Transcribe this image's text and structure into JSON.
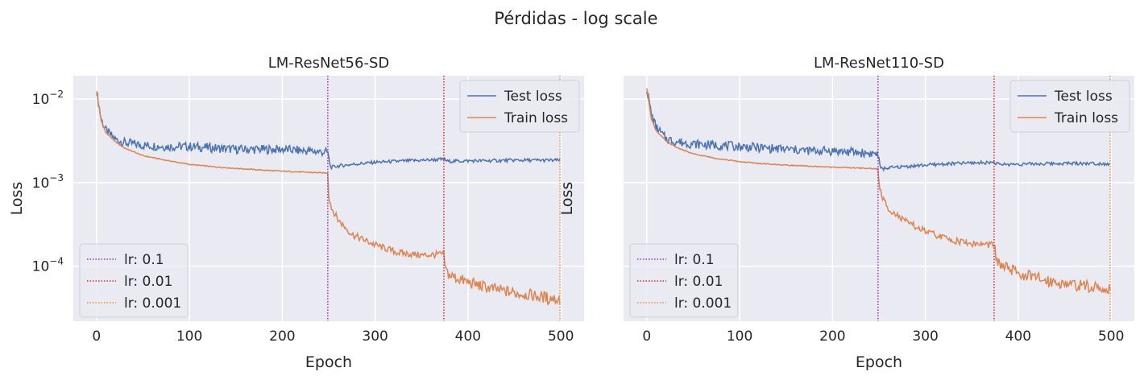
{
  "figure": {
    "suptitle": "Pérdidas - log scale"
  },
  "colors": {
    "test": "#4c72b0",
    "train": "#dd8452",
    "lr_0.1": "#9b30c0",
    "lr_0.01": "#e0282e",
    "lr_0.001": "#f0902a",
    "background": "#eaeaf2",
    "grid": "#ffffff"
  },
  "chart_data": [
    {
      "type": "line",
      "title": "LM-ResNet56-SD",
      "xlabel": "Epoch",
      "ylabel": "Loss",
      "yscale": "log",
      "xlim": [
        -25,
        525
      ],
      "ylim": [
        2.2e-05,
        0.019
      ],
      "xticks": [
        0,
        100,
        200,
        300,
        400,
        500
      ],
      "yticks": [
        0.0001,
        0.001,
        0.01
      ],
      "ytick_labels": [
        "10^-4",
        "10^-3",
        "10^-2"
      ],
      "grid": true,
      "series": [
        {
          "name": "Test loss",
          "key": "test",
          "x": [
            0,
            5,
            10,
            20,
            30,
            50,
            75,
            100,
            125,
            150,
            175,
            200,
            225,
            249,
            252,
            260,
            275,
            300,
            325,
            350,
            374,
            378,
            400,
            425,
            450,
            475,
            499
          ],
          "y": [
            0.0125,
            0.0058,
            0.0042,
            0.0033,
            0.003,
            0.0028,
            0.0027,
            0.0027,
            0.0026,
            0.0025,
            0.0025,
            0.0025,
            0.0024,
            0.0023,
            0.00152,
            0.00158,
            0.00165,
            0.00175,
            0.0018,
            0.00185,
            0.0019,
            0.0018,
            0.00182,
            0.00183,
            0.00185,
            0.00185,
            0.00185
          ]
        },
        {
          "name": "Train loss",
          "key": "train",
          "x": [
            0,
            5,
            10,
            20,
            30,
            50,
            75,
            100,
            125,
            150,
            175,
            200,
            225,
            249,
            250,
            253,
            260,
            275,
            300,
            325,
            350,
            374,
            376,
            380,
            400,
            425,
            450,
            475,
            499
          ],
          "y": [
            0.0125,
            0.0055,
            0.004,
            0.0031,
            0.0026,
            0.0021,
            0.00185,
            0.00165,
            0.00155,
            0.00148,
            0.00142,
            0.00137,
            0.00133,
            0.0013,
            0.0007,
            0.0005,
            0.00036,
            0.00024,
            0.00018,
            0.000145,
            0.000135,
            0.00014,
            9e-05,
            7.8e-05,
            6.4e-05,
            5.4e-05,
            4.8e-05,
            4.4e-05,
            4e-05
          ]
        }
      ],
      "vlines": [
        {
          "label": "lr: 0.1",
          "x": 249,
          "key": "lr_0.1"
        },
        {
          "label": "lr: 0.01",
          "x": 374,
          "key": "lr_0.01"
        },
        {
          "label": "lr: 0.001",
          "x": 499,
          "key": "lr_0.001"
        }
      ],
      "legends": [
        "top-right",
        "bottom-left"
      ]
    },
    {
      "type": "line",
      "title": "LM-ResNet110-SD",
      "xlabel": "Epoch",
      "ylabel": "Loss",
      "yscale": "log",
      "xlim": [
        -25,
        525
      ],
      "ylim": [
        2.2e-05,
        0.019
      ],
      "xticks": [
        0,
        100,
        200,
        300,
        400,
        500
      ],
      "yticks": [
        0.0001,
        0.001,
        0.01
      ],
      "ytick_labels": [],
      "grid": true,
      "series": [
        {
          "name": "Test loss",
          "key": "test",
          "x": [
            0,
            5,
            10,
            20,
            30,
            50,
            75,
            100,
            125,
            150,
            175,
            200,
            225,
            249,
            252,
            260,
            275,
            300,
            325,
            350,
            374,
            378,
            400,
            425,
            450,
            475,
            499
          ],
          "y": [
            0.0135,
            0.0065,
            0.0046,
            0.0034,
            0.0031,
            0.0029,
            0.0028,
            0.0027,
            0.0026,
            0.0025,
            0.0024,
            0.0024,
            0.0023,
            0.0022,
            0.00145,
            0.0015,
            0.00155,
            0.00162,
            0.00168,
            0.00172,
            0.00175,
            0.00165,
            0.00166,
            0.00168,
            0.0017,
            0.0017,
            0.00168
          ]
        },
        {
          "name": "Train loss",
          "key": "train",
          "x": [
            0,
            5,
            10,
            20,
            30,
            50,
            75,
            100,
            125,
            150,
            175,
            200,
            225,
            249,
            250,
            253,
            260,
            275,
            300,
            325,
            350,
            374,
            376,
            380,
            400,
            425,
            450,
            475,
            499
          ],
          "y": [
            0.0135,
            0.0058,
            0.0042,
            0.0032,
            0.0027,
            0.0022,
            0.00195,
            0.00178,
            0.00168,
            0.00162,
            0.00157,
            0.00153,
            0.0015,
            0.00146,
            0.00095,
            0.00068,
            0.0005,
            0.00036,
            0.00026,
            0.00021,
            0.000185,
            0.00018,
            0.000125,
            0.000105,
            8.2e-05,
            7e-05,
            6.2e-05,
            5.7e-05,
            5.3e-05
          ]
        }
      ],
      "vlines": [
        {
          "label": "lr: 0.1",
          "x": 249,
          "key": "lr_0.1"
        },
        {
          "label": "lr: 0.01",
          "x": 374,
          "key": "lr_0.01"
        },
        {
          "label": "lr: 0.001",
          "x": 499,
          "key": "lr_0.001"
        }
      ],
      "legends": [
        "top-right",
        "bottom-left"
      ]
    }
  ]
}
